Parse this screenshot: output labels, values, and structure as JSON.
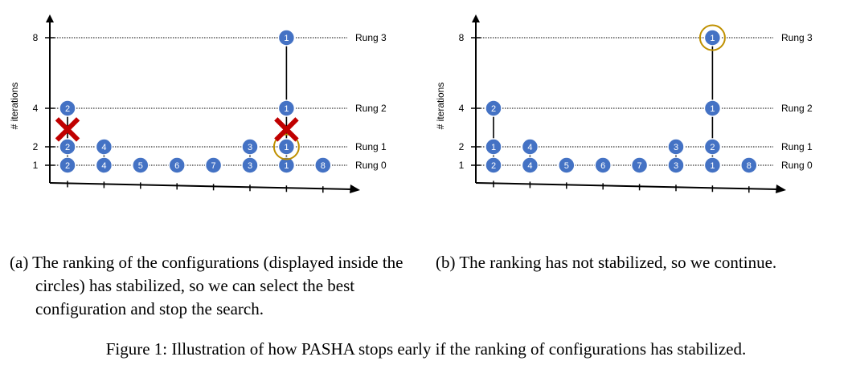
{
  "colors": {
    "node_fill": "#4472C4",
    "node_stroke": "#FFFFFF",
    "highlight_ring": "#BF9000",
    "cross": "#C00000",
    "axis": "#000000"
  },
  "panels": [
    {
      "id": "a",
      "ylabel": "# iterations",
      "yticks": [
        1,
        2,
        4,
        8
      ],
      "rungs": [
        {
          "label": "Rung 0",
          "y": 1
        },
        {
          "label": "Rung 1",
          "y": 2
        },
        {
          "label": "Rung 2",
          "y": 4
        },
        {
          "label": "Rung 3",
          "y": 8
        }
      ],
      "nodes": [
        {
          "x": 1,
          "y": 1,
          "label": "2"
        },
        {
          "x": 2,
          "y": 1,
          "label": "4"
        },
        {
          "x": 3,
          "y": 1,
          "label": "5"
        },
        {
          "x": 4,
          "y": 1,
          "label": "6"
        },
        {
          "x": 5,
          "y": 1,
          "label": "7"
        },
        {
          "x": 6,
          "y": 1,
          "label": "3"
        },
        {
          "x": 7,
          "y": 1,
          "label": "1"
        },
        {
          "x": 8,
          "y": 1,
          "label": "8"
        },
        {
          "x": 1,
          "y": 2,
          "label": "2"
        },
        {
          "x": 2,
          "y": 2,
          "label": "4"
        },
        {
          "x": 6,
          "y": 2,
          "label": "3"
        },
        {
          "x": 7,
          "y": 2,
          "label": "1"
        },
        {
          "x": 1,
          "y": 4,
          "label": "2"
        },
        {
          "x": 7,
          "y": 4,
          "label": "1"
        },
        {
          "x": 7,
          "y": 8,
          "label": "1"
        }
      ],
      "promotions": [
        {
          "x": 1,
          "from": 1,
          "to": 4
        },
        {
          "x": 2,
          "from": 1,
          "to": 2
        },
        {
          "x": 6,
          "from": 1,
          "to": 2
        },
        {
          "x": 7,
          "from": 1,
          "to": 8
        }
      ],
      "highlight": [
        {
          "x": 7,
          "y": 2
        }
      ],
      "crosses": [
        {
          "x": 1,
          "y": 2.9
        },
        {
          "x": 7,
          "y": 2.9
        }
      ]
    },
    {
      "id": "b",
      "ylabel": "# iterations",
      "yticks": [
        1,
        2,
        4,
        8
      ],
      "rungs": [
        {
          "label": "Rung 0",
          "y": 1
        },
        {
          "label": "Rung 1",
          "y": 2
        },
        {
          "label": "Rung 2",
          "y": 4
        },
        {
          "label": "Rung 3",
          "y": 8
        }
      ],
      "nodes": [
        {
          "x": 1,
          "y": 1,
          "label": "2"
        },
        {
          "x": 2,
          "y": 1,
          "label": "4"
        },
        {
          "x": 3,
          "y": 1,
          "label": "5"
        },
        {
          "x": 4,
          "y": 1,
          "label": "6"
        },
        {
          "x": 5,
          "y": 1,
          "label": "7"
        },
        {
          "x": 6,
          "y": 1,
          "label": "3"
        },
        {
          "x": 7,
          "y": 1,
          "label": "1"
        },
        {
          "x": 8,
          "y": 1,
          "label": "8"
        },
        {
          "x": 1,
          "y": 2,
          "label": "1"
        },
        {
          "x": 2,
          "y": 2,
          "label": "4"
        },
        {
          "x": 6,
          "y": 2,
          "label": "3"
        },
        {
          "x": 7,
          "y": 2,
          "label": "2"
        },
        {
          "x": 1,
          "y": 4,
          "label": "2"
        },
        {
          "x": 7,
          "y": 4,
          "label": "1"
        },
        {
          "x": 7,
          "y": 8,
          "label": "1"
        }
      ],
      "promotions": [
        {
          "x": 1,
          "from": 1,
          "to": 4
        },
        {
          "x": 2,
          "from": 1,
          "to": 2
        },
        {
          "x": 6,
          "from": 1,
          "to": 2
        },
        {
          "x": 7,
          "from": 1,
          "to": 8
        }
      ],
      "highlight": [
        {
          "x": 7,
          "y": 8
        }
      ],
      "crosses": []
    }
  ],
  "captions": {
    "a": "(a) The ranking of the configurations (displayed inside the circles) has stabilized, so we can select the best configuration and stop the search.",
    "b": "(b) The ranking has not stabilized, so we continue.",
    "figure": "Figure 1: Illustration of how PASHA stops early if the ranking of configurations has stabilized."
  }
}
